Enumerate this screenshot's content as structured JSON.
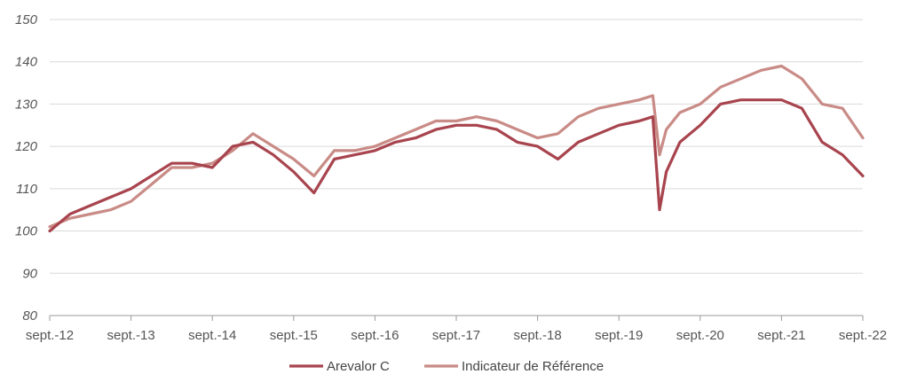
{
  "chart_data": {
    "type": "line",
    "title": "",
    "xlabel": "",
    "ylabel": "",
    "ylim": [
      80,
      150
    ],
    "y_ticks": [
      "80",
      "90",
      "100",
      "110",
      "120",
      "130",
      "140",
      "150"
    ],
    "x_ticks": [
      "sept.-12",
      "sept.-13",
      "sept.-14",
      "sept.-15",
      "sept.-16",
      "sept.-17",
      "sept.-18",
      "sept.-19",
      "sept.-20",
      "sept.-21",
      "sept.-22"
    ],
    "grid": true,
    "legend_position": "bottom",
    "x": [
      "2012-09",
      "2012-12",
      "2013-03",
      "2013-06",
      "2013-09",
      "2013-12",
      "2014-03",
      "2014-06",
      "2014-09",
      "2014-12",
      "2015-03",
      "2015-06",
      "2015-09",
      "2015-12",
      "2016-03",
      "2016-06",
      "2016-09",
      "2016-12",
      "2017-03",
      "2017-06",
      "2017-09",
      "2017-12",
      "2018-03",
      "2018-06",
      "2018-09",
      "2018-12",
      "2019-03",
      "2019-06",
      "2019-09",
      "2019-12",
      "2020-02",
      "2020-03",
      "2020-04",
      "2020-06",
      "2020-09",
      "2020-12",
      "2021-03",
      "2021-06",
      "2021-09",
      "2021-12",
      "2022-03",
      "2022-06",
      "2022-09"
    ],
    "series": [
      {
        "name": "Arevalor C",
        "color": "#a8444e",
        "values": [
          100,
          104,
          106,
          108,
          110,
          113,
          116,
          116,
          115,
          120,
          121,
          118,
          114,
          109,
          117,
          118,
          119,
          121,
          122,
          124,
          125,
          125,
          124,
          121,
          120,
          117,
          121,
          123,
          125,
          126,
          127,
          105,
          114,
          121,
          125,
          130,
          131,
          131,
          131,
          129,
          121,
          118,
          113
        ]
      },
      {
        "name": "Indicateur de Référence",
        "color": "#c98b86",
        "values": [
          101,
          103,
          104,
          105,
          107,
          111,
          115,
          115,
          116,
          119,
          123,
          120,
          117,
          113,
          119,
          119,
          120,
          122,
          124,
          126,
          126,
          127,
          126,
          124,
          122,
          123,
          127,
          129,
          130,
          131,
          132,
          118,
          124,
          128,
          130,
          134,
          136,
          138,
          139,
          136,
          130,
          129,
          122
        ]
      }
    ]
  }
}
